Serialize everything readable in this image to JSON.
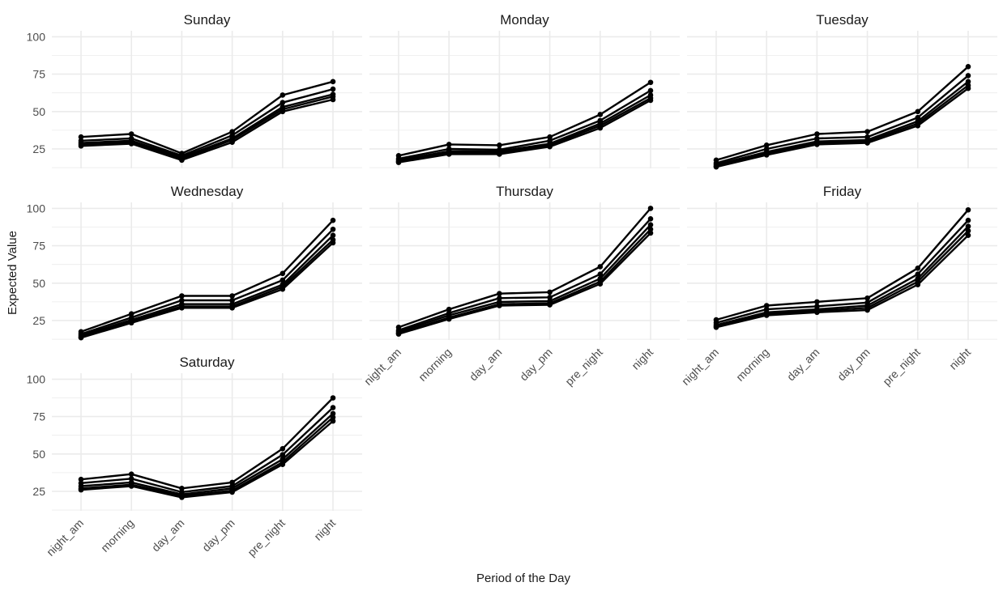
{
  "chart_data": {
    "type": "line",
    "xlabel": "Period of the Day",
    "ylabel": "Expected Value",
    "categories": [
      "night_am",
      "morning",
      "day_am",
      "day_pm",
      "pre_night",
      "night"
    ],
    "yticks": [
      25,
      50,
      75,
      100
    ],
    "ylim": [
      12,
      104
    ],
    "grid": true,
    "line_color": "#000000",
    "grid_color": "#ebebeb",
    "facets": [
      {
        "title": "Sunday",
        "series": [
          {
            "values": [
              33,
              35,
              22,
              36.5,
              61,
              70
            ]
          },
          {
            "values": [
              30.5,
              32,
              20.5,
              34,
              56,
              65
            ]
          },
          {
            "values": [
              29,
              30.5,
              19.5,
              32,
              53,
              61.5
            ]
          },
          {
            "values": [
              28,
              29.5,
              18.5,
              31,
              51.5,
              60
            ]
          },
          {
            "values": [
              27,
              28.5,
              17.5,
              29.5,
              50,
              58
            ]
          }
        ]
      },
      {
        "title": "Monday",
        "series": [
          {
            "values": [
              20.5,
              28,
              27.5,
              33,
              48,
              69.5
            ]
          },
          {
            "values": [
              18.5,
              25,
              24.5,
              30.5,
              44,
              64
            ]
          },
          {
            "values": [
              17.5,
              23.5,
              23.5,
              28.5,
              42,
              61
            ]
          },
          {
            "values": [
              16.5,
              22.5,
              22.5,
              27.5,
              40.5,
              59
            ]
          },
          {
            "values": [
              16,
              21.5,
              21.5,
              26.5,
              39,
              57.5
            ]
          }
        ]
      },
      {
        "title": "Tuesday",
        "series": [
          {
            "values": [
              17.5,
              27.5,
              35,
              36.5,
              50,
              80
            ]
          },
          {
            "values": [
              15.5,
              25,
              32,
              33,
              46,
              74
            ]
          },
          {
            "values": [
              14.5,
              23,
              30,
              31,
              43.5,
              70
            ]
          },
          {
            "values": [
              13.5,
              22,
              29,
              30,
              42,
              67.5
            ]
          },
          {
            "values": [
              13,
              21,
              28,
              29,
              40.5,
              65.5
            ]
          }
        ]
      },
      {
        "title": "Wednesday",
        "series": [
          {
            "values": [
              17.5,
              29.5,
              41.5,
              41.5,
              56.5,
              92
            ]
          },
          {
            "values": [
              16,
              27,
              38.5,
              38.5,
              52,
              86
            ]
          },
          {
            "values": [
              15,
              25.5,
              36,
              36,
              49,
              82
            ]
          },
          {
            "values": [
              14,
              24.5,
              34.5,
              34.5,
              47.5,
              79
            ]
          },
          {
            "values": [
              13.5,
              23.5,
              33.5,
              33.5,
              46,
              77
            ]
          }
        ]
      },
      {
        "title": "Thursday",
        "series": [
          {
            "values": [
              20.5,
              32.5,
              43,
              44,
              61,
              100
            ]
          },
          {
            "values": [
              18.5,
              30,
              40,
              40.5,
              56,
              93
            ]
          },
          {
            "values": [
              17.5,
              28.5,
              37.5,
              38,
              53,
              89
            ]
          },
          {
            "values": [
              16.5,
              27,
              36,
              36.5,
              51,
              86
            ]
          },
          {
            "values": [
              16,
              26,
              35,
              35.5,
              49.5,
              83.5
            ]
          }
        ]
      },
      {
        "title": "Friday",
        "series": [
          {
            "values": [
              25.5,
              35,
              37.5,
              40,
              60,
              99
            ]
          },
          {
            "values": [
              23.5,
              32.5,
              34.5,
              37,
              56,
              92
            ]
          },
          {
            "values": [
              22,
              30.5,
              32.5,
              35,
              53,
              88
            ]
          },
          {
            "values": [
              21,
              29.5,
              31.5,
              33.5,
              51,
              85
            ]
          },
          {
            "values": [
              20.5,
              28.5,
              30.5,
              32,
              49,
              82
            ]
          }
        ]
      },
      {
        "title": "Saturday",
        "series": [
          {
            "values": [
              33,
              36.5,
              27,
              31,
              53.5,
              87.5
            ]
          },
          {
            "values": [
              30.5,
              33.5,
              24.5,
              28.5,
              49.5,
              81
            ]
          },
          {
            "values": [
              28.5,
              31,
              23,
              27,
              46.5,
              77
            ]
          },
          {
            "values": [
              27,
              29.5,
              22,
              25.5,
              44.5,
              74.5
            ]
          },
          {
            "values": [
              26,
              28.5,
              21,
              24.5,
              43,
              72
            ]
          }
        ]
      }
    ]
  }
}
